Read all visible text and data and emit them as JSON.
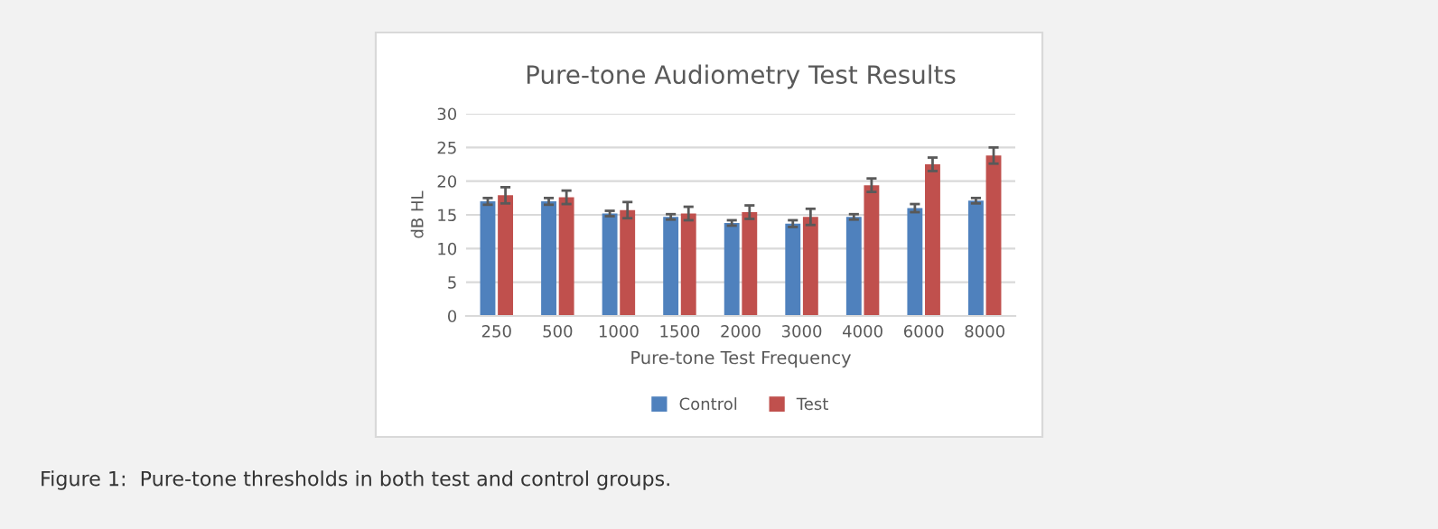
{
  "chart_data": {
    "type": "bar",
    "title": "Pure-tone Audiometry Test Results",
    "xlabel": "Pure-tone Test Frequency",
    "ylabel": "dB HL",
    "categories": [
      "250",
      "500",
      "1000",
      "1500",
      "2000",
      "3000",
      "4000",
      "6000",
      "8000"
    ],
    "series": [
      {
        "name": "Control",
        "color": "#4f81bd",
        "values": [
          17.0,
          17.0,
          15.2,
          14.7,
          13.8,
          13.7,
          14.7,
          16.0,
          17.1
        ],
        "errors": [
          0.5,
          0.5,
          0.4,
          0.4,
          0.4,
          0.5,
          0.4,
          0.6,
          0.4
        ]
      },
      {
        "name": "Test",
        "color": "#c0504d",
        "values": [
          17.9,
          17.6,
          15.7,
          15.2,
          15.4,
          14.7,
          19.4,
          22.5,
          23.8
        ],
        "errors": [
          1.2,
          1.0,
          1.2,
          1.0,
          1.0,
          1.2,
          1.0,
          1.0,
          1.2
        ]
      }
    ],
    "ylim": [
      0,
      30
    ],
    "yticks": [
      0,
      5,
      10,
      15,
      20,
      25,
      30
    ],
    "grid": "y",
    "legend": "bottom",
    "annotations": [
      "Figure 1:  Pure-tone thresholds in both test and control groups."
    ]
  }
}
